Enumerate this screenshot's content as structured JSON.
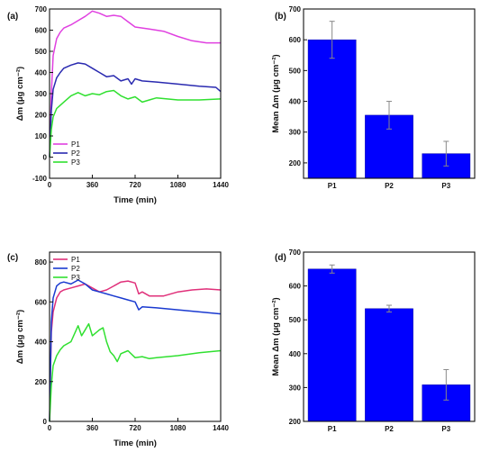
{
  "chart_data": [
    {
      "panel": "(a)",
      "type": "line",
      "xlabel": "Time (min)",
      "ylabel": "Δm (μg cm⁻²)",
      "xlim": [
        0,
        1440
      ],
      "ylim": [
        -100,
        700
      ],
      "xticks": [
        0,
        360,
        720,
        1080,
        1440
      ],
      "yticks": [
        -100,
        0,
        100,
        200,
        300,
        400,
        500,
        600,
        700
      ],
      "legend_position": "bottom-left",
      "series": [
        {
          "name": "P1",
          "color": "#e040e0",
          "x": [
            0,
            15,
            30,
            60,
            90,
            120,
            180,
            240,
            300,
            360,
            420,
            480,
            540,
            600,
            660,
            720,
            840,
            960,
            1080,
            1200,
            1320,
            1400,
            1440
          ],
          "y": [
            0,
            300,
            480,
            560,
            590,
            610,
            625,
            645,
            665,
            690,
            680,
            665,
            670,
            665,
            640,
            615,
            605,
            595,
            570,
            550,
            540,
            540,
            540
          ]
        },
        {
          "name": "P2",
          "color": "#2a2ab0",
          "x": [
            0,
            15,
            30,
            60,
            90,
            120,
            180,
            240,
            300,
            360,
            420,
            480,
            540,
            600,
            660,
            690,
            720,
            780,
            900,
            1080,
            1260,
            1400,
            1440
          ],
          "y": [
            0,
            220,
            320,
            375,
            400,
            420,
            435,
            445,
            440,
            420,
            400,
            380,
            385,
            360,
            370,
            345,
            370,
            360,
            355,
            345,
            335,
            330,
            310
          ]
        },
        {
          "name": "P3",
          "color": "#30e030",
          "x": [
            0,
            15,
            30,
            60,
            90,
            120,
            180,
            240,
            300,
            360,
            420,
            480,
            540,
            600,
            660,
            720,
            780,
            840,
            900,
            1080,
            1260,
            1440
          ],
          "y": [
            0,
            130,
            190,
            230,
            245,
            260,
            290,
            305,
            290,
            300,
            295,
            310,
            315,
            290,
            275,
            285,
            260,
            270,
            280,
            270,
            270,
            275
          ]
        }
      ]
    },
    {
      "panel": "(b)",
      "type": "bar",
      "ylabel": "Mean Δm (μg cm⁻²)",
      "categories": [
        "P1",
        "P2",
        "P3"
      ],
      "values": [
        600,
        355,
        230
      ],
      "errors": [
        60,
        45,
        40
      ],
      "ylim": [
        150,
        700
      ],
      "yticks": [
        200,
        300,
        400,
        500,
        600,
        700
      ],
      "color": "#0000ff"
    },
    {
      "panel": "(c)",
      "type": "line",
      "xlabel": "Time (min)",
      "ylabel": "Δm (μg cm⁻²)",
      "xlim": [
        0,
        1440
      ],
      "ylim": [
        0,
        850
      ],
      "xticks": [
        0,
        360,
        720,
        1080,
        1440
      ],
      "yticks": [
        0,
        200,
        400,
        600,
        800
      ],
      "legend_position": "top-left",
      "series": [
        {
          "name": "P1",
          "color": "#e0307a",
          "x": [
            0,
            15,
            30,
            60,
            90,
            120,
            180,
            240,
            300,
            360,
            420,
            480,
            540,
            600,
            660,
            720,
            750,
            780,
            840,
            960,
            1080,
            1200,
            1320,
            1440
          ],
          "y": [
            0,
            450,
            550,
            620,
            650,
            660,
            670,
            680,
            690,
            670,
            650,
            660,
            680,
            700,
            705,
            695,
            640,
            650,
            630,
            630,
            650,
            660,
            665,
            660
          ]
        },
        {
          "name": "P2",
          "color": "#1a3ad0",
          "x": [
            0,
            15,
            30,
            60,
            90,
            120,
            180,
            240,
            300,
            360,
            420,
            480,
            540,
            600,
            660,
            720,
            750,
            780,
            900,
            1080,
            1260,
            1440
          ],
          "y": [
            0,
            500,
            620,
            680,
            695,
            700,
            690,
            710,
            690,
            660,
            650,
            640,
            630,
            620,
            610,
            600,
            560,
            575,
            570,
            560,
            550,
            540
          ]
        },
        {
          "name": "P3",
          "color": "#30e030",
          "x": [
            0,
            15,
            30,
            60,
            90,
            120,
            180,
            240,
            270,
            300,
            330,
            360,
            420,
            450,
            480,
            510,
            540,
            570,
            600,
            660,
            720,
            780,
            840,
            900,
            1080,
            1260,
            1440
          ],
          "y": [
            0,
            180,
            280,
            330,
            360,
            380,
            400,
            480,
            430,
            460,
            490,
            430,
            460,
            470,
            400,
            350,
            330,
            300,
            340,
            355,
            320,
            325,
            315,
            320,
            330,
            345,
            355
          ]
        }
      ]
    },
    {
      "panel": "(d)",
      "type": "bar",
      "ylabel": "Mean Δm (μg cm⁻²)",
      "categories": [
        "P1",
        "P2",
        "P3"
      ],
      "values": [
        650,
        533,
        308
      ],
      "errors": [
        12,
        10,
        45
      ],
      "ylim": [
        200,
        700
      ],
      "yticks": [
        200,
        300,
        400,
        500,
        600,
        700
      ],
      "color": "#0000ff"
    }
  ]
}
